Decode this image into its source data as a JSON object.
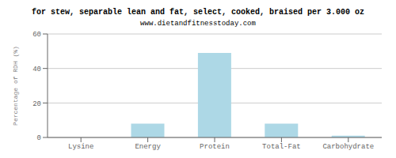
{
  "chart_data": {
    "type": "bar",
    "title": "for stew, separable lean and fat, select, cooked, braised per 3.000 oz",
    "subtitle": "www.dietandfitnesstoday.com",
    "categories": [
      "Lysine",
      "Energy",
      "Protein",
      "Total-Fat",
      "Carbohydrate"
    ],
    "values": [
      0.0,
      8.0,
      49.0,
      8.0,
      1.0
    ],
    "color": "#add8e6",
    "ylabel": "Percentage of RDH (%)",
    "ylim": [
      0,
      60
    ],
    "yticks": [
      0,
      20,
      40,
      60
    ],
    "grid": true
  }
}
